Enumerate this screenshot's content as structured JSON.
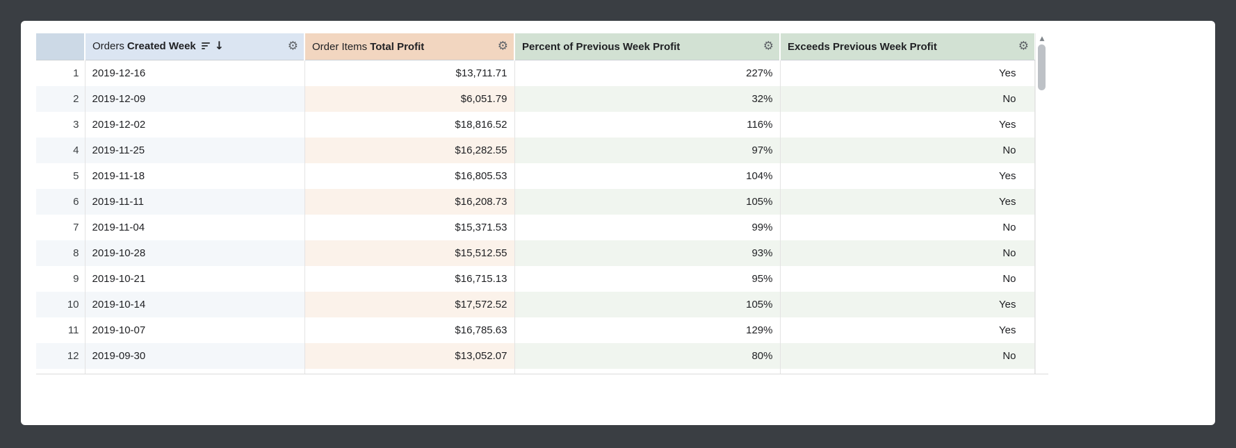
{
  "colors": {
    "frame_bg": "#3a3e43",
    "card_bg": "#ffffff",
    "header_row_number_bg": "#ccd9e6",
    "header_dimension_bg": "#dbe5f2",
    "header_measure_bg": "#f2d6c0",
    "header_calc_bg": "#d2e1d3",
    "band_dimension": "#f4f7fa",
    "band_measure": "#fbf2ea",
    "band_calc": "#f0f5ef",
    "text": "#202124",
    "grid_line": "#e3e3e3",
    "scroll_thumb": "#bdc1c6"
  },
  "icons": {
    "gear": "⚙",
    "sort_desc_arrow": "↓",
    "scroll_up": "▲"
  },
  "table": {
    "header": {
      "row_number_label": "",
      "columns": [
        {
          "view": "Orders",
          "field": "Created Week",
          "sorted_desc": true
        },
        {
          "view": "Order Items",
          "field": "Total Profit"
        },
        {
          "view": "",
          "field": "Percent of Previous Week Profit"
        },
        {
          "view": "",
          "field": "Exceeds Previous Week Profit"
        }
      ]
    },
    "rows": [
      {
        "n": "1",
        "week": "2019-12-16",
        "profit": "$13,711.71",
        "percent": "227%",
        "exceeds": "Yes"
      },
      {
        "n": "2",
        "week": "2019-12-09",
        "profit": "$6,051.79",
        "percent": "32%",
        "exceeds": "No"
      },
      {
        "n": "3",
        "week": "2019-12-02",
        "profit": "$18,816.52",
        "percent": "116%",
        "exceeds": "Yes"
      },
      {
        "n": "4",
        "week": "2019-11-25",
        "profit": "$16,282.55",
        "percent": "97%",
        "exceeds": "No"
      },
      {
        "n": "5",
        "week": "2019-11-18",
        "profit": "$16,805.53",
        "percent": "104%",
        "exceeds": "Yes"
      },
      {
        "n": "6",
        "week": "2019-11-11",
        "profit": "$16,208.73",
        "percent": "105%",
        "exceeds": "Yes"
      },
      {
        "n": "7",
        "week": "2019-11-04",
        "profit": "$15,371.53",
        "percent": "99%",
        "exceeds": "No"
      },
      {
        "n": "8",
        "week": "2019-10-28",
        "profit": "$15,512.55",
        "percent": "93%",
        "exceeds": "No"
      },
      {
        "n": "9",
        "week": "2019-10-21",
        "profit": "$16,715.13",
        "percent": "95%",
        "exceeds": "No"
      },
      {
        "n": "10",
        "week": "2019-10-14",
        "profit": "$17,572.52",
        "percent": "105%",
        "exceeds": "Yes"
      },
      {
        "n": "11",
        "week": "2019-10-07",
        "profit": "$16,785.63",
        "percent": "129%",
        "exceeds": "Yes"
      },
      {
        "n": "12",
        "week": "2019-09-30",
        "profit": "$13,052.07",
        "percent": "80%",
        "exceeds": "No"
      }
    ]
  }
}
